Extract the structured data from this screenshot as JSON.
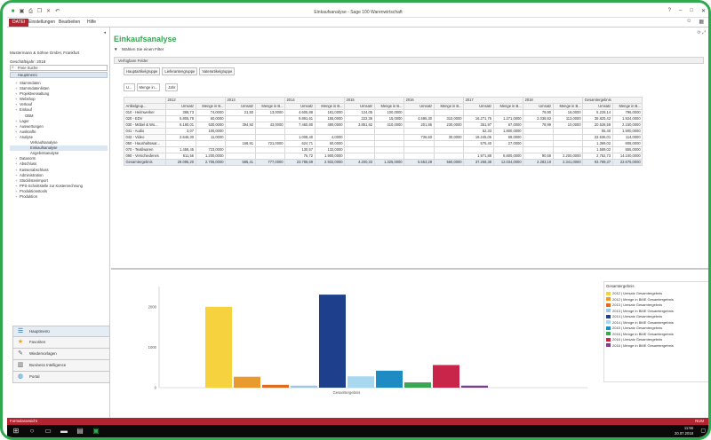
{
  "window": {
    "title": "Einkaufsanalyse - Sage 100 Warenwirtschaft"
  },
  "menubar": {
    "file": "DATEI",
    "items": [
      "Einstellungen",
      "Bearbeiten",
      "Hilfe"
    ]
  },
  "sidebar": {
    "company": "Mustermann & Söhne GmbH, Frankfurt",
    "fiscal_year": "Geschäftsjahr: 2018",
    "search_placeholder": "Freie Suche",
    "main_menu": "Hauptmenü",
    "tree": [
      {
        "label": "Stammdaten",
        "level": 1,
        "exp": "+"
      },
      {
        "label": "Stammdatenlisten",
        "level": 1,
        "exp": "+"
      },
      {
        "label": "Projektverwaltung",
        "level": 1,
        "exp": "+"
      },
      {
        "label": "Webshop",
        "level": 1,
        "exp": "+"
      },
      {
        "label": "Verkauf",
        "level": 1,
        "exp": "+"
      },
      {
        "label": "Einkauf",
        "level": 1,
        "exp": "+"
      },
      {
        "label": "OBM",
        "level": 2,
        "exp": ""
      },
      {
        "label": "Lager",
        "level": 1,
        "exp": "+"
      },
      {
        "label": "Auswertungen",
        "level": 1,
        "exp": "+"
      },
      {
        "label": "Auskünfte",
        "level": 1,
        "exp": "+"
      },
      {
        "label": "Analyse",
        "level": 1,
        "exp": "−"
      },
      {
        "label": "Verkaufsanalyse",
        "level": 3,
        "exp": ""
      },
      {
        "label": "Einkaufsanalyse",
        "level": 3,
        "exp": ""
      },
      {
        "label": "Angebotsanalyse",
        "level": 3,
        "exp": ""
      },
      {
        "label": "Datanorm",
        "level": 1,
        "exp": "+"
      },
      {
        "label": "Abschluss",
        "level": 1,
        "exp": "+"
      },
      {
        "label": "Kassenabschluss",
        "level": 1,
        "exp": "+"
      },
      {
        "label": "Administration",
        "level": 1,
        "exp": "+"
      },
      {
        "label": "Stücklistenimport",
        "level": 1,
        "exp": "+"
      },
      {
        "label": "PPS-Schnittstelle zur Kostenrechnung",
        "level": 1,
        "exp": "+"
      },
      {
        "label": "Produktionstools",
        "level": 1,
        "exp": "+"
      },
      {
        "label": "Produktion",
        "level": 1,
        "exp": "+"
      }
    ],
    "nav_buttons": [
      {
        "label": "Hauptmenü",
        "icon": "menu-icon"
      },
      {
        "label": "Favoriten",
        "icon": "star-icon"
      },
      {
        "label": "Wiedervorlagen",
        "icon": "note-icon"
      },
      {
        "label": "Business Intelligence",
        "icon": "chart-icon"
      },
      {
        "label": "Portal",
        "icon": "globe-icon"
      }
    ]
  },
  "main": {
    "title": "Einkaufsanalyse",
    "filter_label": "Wählen Sie einen Filter",
    "fields_bar": "Verfügbare Felder",
    "field_buttons": [
      "Hauptartikelgruppe",
      "Lieferantengruppe",
      "Vaterartikelgruppe"
    ],
    "small_buttons": [
      "U...",
      "Menge in...",
      "Jahr"
    ],
    "row_field": "Artikelgrup...",
    "year_headers": [
      "2012",
      "2013",
      "2014",
      "2015",
      "2016",
      "2017",
      "2018",
      "Gesamtergebnis"
    ],
    "col_headers": [
      "Umsatz",
      "Menge in B...",
      "Umsatz",
      "Menge in B...",
      "Umsatz",
      "Menge in B...",
      "Umsatz",
      "Menge in B...",
      "Umsatz",
      "Menge in B...",
      "Umsatz",
      "Menge in B...",
      "Umsatz",
      "Menge in B...",
      "Umsatz",
      "Menge in B..."
    ],
    "rows": [
      [
        "010 - Heimwerker",
        "388,73",
        "74,0000",
        "21,50",
        "13,0000",
        "4.605,88",
        "181,0000",
        "124,05",
        "100,0000",
        "",
        "",
        "",
        "",
        "79,90",
        "18,0000",
        "5.229,14",
        "796,0000"
      ],
      [
        "020 - EDV",
        "5.805,78",
        "60,0000",
        "",
        "",
        "9.891,61",
        "155,0000",
        "222,36",
        "15,0000",
        "4.595,30",
        "310,0000",
        "16.271,75",
        "1.271,0000",
        "2.038,82",
        "113,0000",
        "38.825,42",
        "1.924,0000"
      ],
      [
        "030 - Möbel & Wo...",
        "8.180,01",
        "530,0000",
        "394,92",
        "43,0000",
        "7.460,80",
        "480,0000",
        "3.851,92",
        "410,0000",
        "201,86",
        "230,0000",
        "351,97",
        "67,0000",
        "78,99",
        "10,0000",
        "20.528,59",
        "2.150,0000"
      ],
      [
        "041 - Audio",
        "3,07",
        "100,0000",
        "",
        "",
        "",
        "",
        "",
        "",
        "",
        "",
        "52,33",
        "1.800,0000",
        "",
        "",
        "55,40",
        "1.900,0000"
      ],
      [
        "042 - Video",
        "2.646,30",
        "11,0000",
        "",
        "",
        "1.008,40",
        "4,0000",
        "",
        "",
        "736,50",
        "30,0000",
        "18.245,05",
        "69,0000",
        "",
        "",
        "23.636,01",
        "114,0000"
      ],
      [
        "050 - Haushaltswar...",
        "",
        "",
        "168,91",
        "721,0000",
        "624,71",
        "60,0000",
        "",
        "",
        "",
        "",
        "575,40",
        "27,0000",
        "",
        "",
        "1.369,02",
        "808,0000"
      ],
      [
        "070 - Textilwaren",
        "1.458,45",
        "723,0000",
        "",
        "",
        "130,57",
        "132,0000",
        "",
        "",
        "",
        "",
        "",
        "",
        "",
        "",
        "1.589,02",
        "855,0000"
      ],
      [
        "090 - Verschiedenes",
        "611,56",
        "1.200,0000",
        "",
        "",
        "76,72",
        "1.900,0000",
        "",
        "",
        "",
        "",
        "1.971,88",
        "8.800,0000",
        "90,58",
        "2.200,0000",
        "2.752,73",
        "14.100,0000"
      ]
    ],
    "total_row": [
      "Gesamtergebnis",
      "29.095,20",
      "2.706,0000",
      "585,41",
      "777,0000",
      "23.788,69",
      "2.932,0000",
      "4.200,33",
      "1.325,0000",
      "5.553,28",
      "560,0000",
      "37.268,38",
      "12.034,0000",
      "2.283,10",
      "2.341,0000",
      "93.789,37",
      "22.675,0000"
    ]
  },
  "chart_data": {
    "type": "bar",
    "categories": [
      "Gesamtergebnis"
    ],
    "ylim": [
      0,
      2500
    ],
    "yticks": [
      0,
      1000,
      2000
    ],
    "legend_title": "Gesamtergebnis",
    "legend_placement": "right",
    "series": [
      {
        "name": "2012 | Umsatz Gesamtergebnis",
        "value": 2000,
        "color": "#f6d23e"
      },
      {
        "name": "2012 | Menge in BME Gesamtergebnis",
        "value": 270,
        "color": "#e99a2e"
      },
      {
        "name": "2013 | Umsatz Gesamtergebnis",
        "value": 70,
        "color": "#e06a1f"
      },
      {
        "name": "2013 | Menge in BME Gesamtergebnis",
        "value": 50,
        "color": "#9ec7e6"
      },
      {
        "name": "2014 | Umsatz Gesamtergebnis",
        "value": 2300,
        "color": "#1d3f8c"
      },
      {
        "name": "2014 | Menge in BME Gesamtergebnis",
        "value": 280,
        "color": "#a8d8f0"
      },
      {
        "name": "2015 | Umsatz Gesamtergebnis",
        "value": 420,
        "color": "#1e8bc3"
      },
      {
        "name": "2015 | Menge in BME Gesamtergebnis",
        "value": 130,
        "color": "#3aa655"
      },
      {
        "name": "2016 | Umsatz Gesamtergebnis",
        "value": 560,
        "color": "#c9244a"
      },
      {
        "name": "2016 | Menge in BME Gesamtergebnis",
        "value": 50,
        "color": "#7a3e8e"
      }
    ],
    "xlabel": "Gesamtergebnis"
  },
  "statusbar": {
    "left": "Formularansicht",
    "right": "NUM"
  },
  "taskbar": {
    "time": "11:56",
    "date": "20.07.2018"
  }
}
